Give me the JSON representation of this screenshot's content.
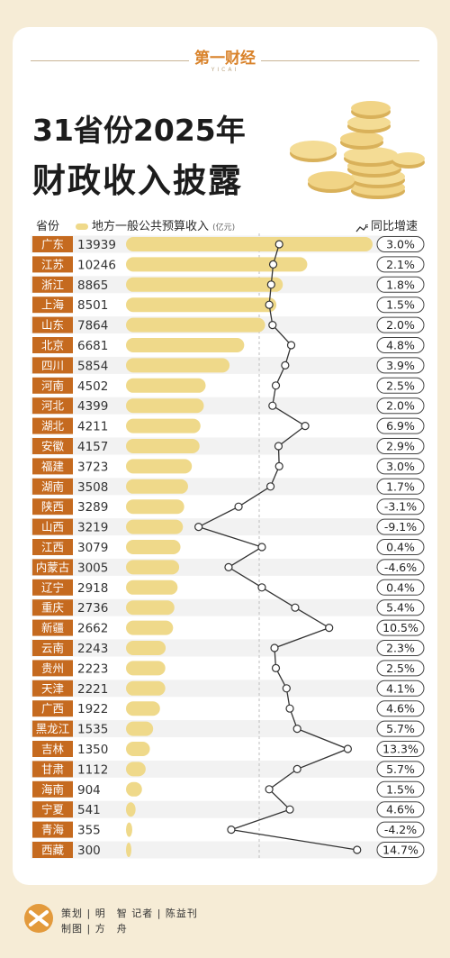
{
  "brand": {
    "logo": "第一财经",
    "sub": "YICAI"
  },
  "title": {
    "line1": "31省份2025年",
    "line2": "财政收入披露"
  },
  "header": {
    "province": "省份",
    "revenue": "地方一般公共预算收入",
    "unit": "(亿元)",
    "growth": "同比增速"
  },
  "colors": {
    "background": "#f6ecd6",
    "bar": "#efd98a",
    "label_bg": "#c56a1f",
    "row_alt": "#f2f2f2"
  },
  "chart_data": {
    "type": "bar",
    "categories": [
      "广东",
      "江苏",
      "浙江",
      "上海",
      "山东",
      "北京",
      "四川",
      "河南",
      "河北",
      "湖北",
      "安徽",
      "福建",
      "湖南",
      "陕西",
      "山西",
      "江西",
      "内蒙古",
      "辽宁",
      "重庆",
      "新疆",
      "云南",
      "贵州",
      "天津",
      "广西",
      "黑龙江",
      "吉林",
      "甘肃",
      "海南",
      "宁夏",
      "青海",
      "西藏"
    ],
    "series": [
      {
        "name": "地方一般公共预算收入",
        "unit": "亿元",
        "values": [
          13939,
          10246,
          8865,
          8501,
          7864,
          6681,
          5854,
          4502,
          4399,
          4211,
          4157,
          3723,
          3508,
          3289,
          3219,
          3079,
          3005,
          2918,
          2736,
          2662,
          2243,
          2223,
          2221,
          1922,
          1535,
          1350,
          1112,
          904,
          541,
          355,
          300
        ]
      },
      {
        "name": "同比增速",
        "values": [
          3.0,
          2.1,
          1.8,
          1.5,
          2.0,
          4.8,
          3.9,
          2.5,
          2.0,
          6.9,
          2.9,
          3.0,
          1.7,
          -3.1,
          -9.1,
          0.4,
          -4.6,
          0.4,
          5.4,
          10.5,
          2.3,
          2.5,
          4.1,
          4.6,
          5.7,
          13.3,
          5.7,
          1.5,
          4.6,
          -4.2,
          14.7
        ],
        "labels": [
          "3.0%",
          "2.1%",
          "1.8%",
          "1.5%",
          "2.0%",
          "4.8%",
          "3.9%",
          "2.5%",
          "2.0%",
          "6.9%",
          "2.9%",
          "3.0%",
          "1.7%",
          "-3.1%",
          "-9.1%",
          "0.4%",
          "-4.6%",
          "0.4%",
          "5.4%",
          "10.5%",
          "2.3%",
          "2.5%",
          "4.1%",
          "4.6%",
          "5.7%",
          "13.3%",
          "5.7%",
          "1.5%",
          "4.6%",
          "-4.2%",
          "14.7%"
        ]
      }
    ]
  },
  "footer": {
    "logo_text": "第一财经",
    "line1": "策划 | 明　智  记者 | 陈益刊",
    "line2": "制图 | 方　舟"
  }
}
